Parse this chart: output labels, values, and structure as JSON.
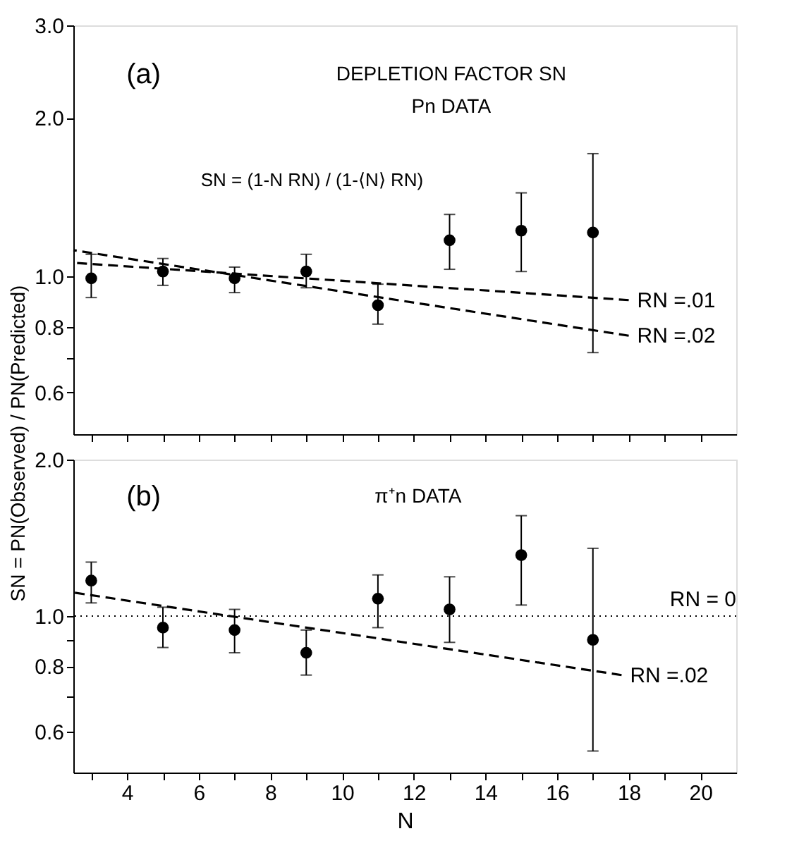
{
  "chart_data": [
    {
      "type": "scatter",
      "xlim": [
        2.5,
        21
      ],
      "ylim": [
        0.5,
        3.0
      ],
      "log": true,
      "grid": false,
      "tick_labels": "y",
      "ylabel": "SN = PN(Observed) / PN(Predicted)",
      "xticks": [
        {
          "value": 3,
          "label": null
        },
        {
          "value": 4,
          "label": null
        },
        {
          "value": 5,
          "label": null
        },
        {
          "value": 6,
          "label": null
        },
        {
          "value": 7,
          "label": null
        },
        {
          "value": 8,
          "label": null
        },
        {
          "value": 9,
          "label": null
        },
        {
          "value": 10,
          "label": null
        },
        {
          "value": 11,
          "label": null
        },
        {
          "value": 12,
          "label": null
        },
        {
          "value": 13,
          "label": null
        },
        {
          "value": 14,
          "label": null
        },
        {
          "value": 15,
          "label": null
        },
        {
          "value": 16,
          "label": null
        },
        {
          "value": 17,
          "label": null
        },
        {
          "value": 18,
          "label": null
        },
        {
          "value": 19,
          "label": null
        },
        {
          "value": 20,
          "label": null
        }
      ],
      "yticks": [
        {
          "value": 0.6,
          "label": "0.6"
        },
        {
          "value": 0.7,
          "label": null
        },
        {
          "value": 0.8,
          "label": "0.8"
        },
        {
          "value": 1,
          "label": "1.0"
        },
        {
          "value": 2,
          "label": "2.0"
        },
        {
          "value": 3,
          "label": "3.0"
        }
      ],
      "annotations": [
        "(a)",
        "DEPLETION FACTOR SN",
        "Pn DATA",
        "SN = (1-N RN) / (1-⟨N⟩ RN)"
      ],
      "series": [
        {
          "type": "scatter",
          "marker": "circle",
          "color": "#000000",
          "x": [
            3,
            5,
            7,
            9,
            11,
            13,
            15,
            17
          ],
          "values": [
            0.99,
            1.02,
            0.99,
            1.02,
            0.88,
            1.17,
            1.22,
            1.21
          ],
          "errors": [
            [
              0.91,
              1.1
            ],
            [
              0.96,
              1.08
            ],
            [
              0.93,
              1.04
            ],
            [
              0.95,
              1.1
            ],
            [
              0.81,
              0.965
            ],
            [
              1.03,
              1.31
            ],
            [
              1.02,
              1.44
            ],
            [
              0.715,
              1.71
            ]
          ]
        },
        {
          "type": "line",
          "name": "RN =.01",
          "color": "#000000",
          "line_style": "dashed",
          "x": [
            2.5,
            18
          ],
          "values": [
            1.06,
            0.9
          ]
        },
        {
          "type": "line",
          "name": "RN =.02",
          "color": "#000000",
          "line_style": "dashed",
          "x": [
            2.5,
            18
          ],
          "values": [
            1.12,
            0.77
          ]
        }
      ]
    },
    {
      "type": "scatter",
      "xlim": [
        2.5,
        21
      ],
      "ylim": [
        0.5,
        2.0
      ],
      "log": true,
      "grid": false,
      "xlabel": "N",
      "xticks": [
        {
          "value": 3,
          "label": null
        },
        4,
        {
          "value": 5,
          "label": null
        },
        6,
        {
          "value": 7,
          "label": null
        },
        8,
        {
          "value": 9,
          "label": null
        },
        10,
        {
          "value": 11,
          "label": null
        },
        12,
        {
          "value": 13,
          "label": null
        },
        14,
        {
          "value": 15,
          "label": null
        },
        16,
        {
          "value": 17,
          "label": null
        },
        18,
        {
          "value": 19,
          "label": null
        },
        20
      ],
      "yticks": [
        {
          "value": 0.6,
          "label": "0.6"
        },
        {
          "value": 0.7,
          "label": null
        },
        {
          "value": 0.8,
          "label": "0.8"
        },
        {
          "value": 0.9,
          "label": null
        },
        {
          "value": 1,
          "label": "1.0"
        },
        {
          "value": 2,
          "label": "2.0"
        }
      ],
      "annotations": [
        "(b)",
        "π⁺n DATA"
      ],
      "series": [
        {
          "type": "scatter",
          "marker": "circle",
          "color": "#000000",
          "x": [
            3,
            5,
            7,
            9,
            11,
            13,
            15,
            17
          ],
          "values": [
            1.17,
            0.95,
            0.94,
            0.85,
            1.08,
            1.03,
            1.31,
            0.9
          ],
          "errors": [
            [
              1.06,
              1.27
            ],
            [
              0.87,
              1.04
            ],
            [
              0.85,
              1.03
            ],
            [
              0.77,
              0.94
            ],
            [
              0.95,
              1.2
            ],
            [
              0.89,
              1.19
            ],
            [
              1.05,
              1.56
            ],
            [
              0.55,
              1.35
            ]
          ]
        },
        {
          "type": "line",
          "name": "RN = 0",
          "color": "#000000",
          "line_style": "dotted",
          "x": [
            2.5,
            21
          ],
          "values": [
            1.0,
            1.0
          ]
        },
        {
          "type": "line",
          "name": "RN =.02",
          "color": "#000000",
          "line_style": "dashed",
          "x": [
            2.5,
            17.8
          ],
          "values": [
            1.11,
            0.77
          ]
        }
      ]
    }
  ]
}
